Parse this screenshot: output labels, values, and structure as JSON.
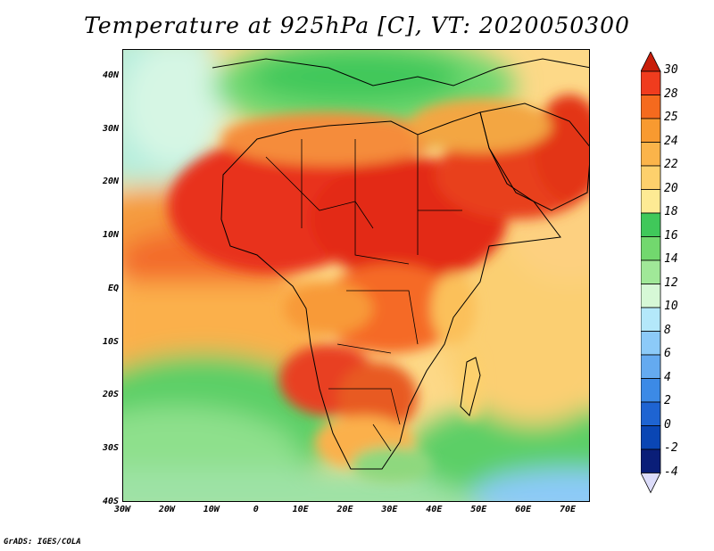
{
  "title": "Temperature at 925hPa [C], VT: 2020050300",
  "credit": "GrADS: IGES/COLA",
  "map": {
    "lon_range": [
      -30,
      75
    ],
    "lat_range": [
      -40,
      45
    ],
    "lon_ticks": [
      {
        "value": -30,
        "label": "30W"
      },
      {
        "value": -20,
        "label": "20W"
      },
      {
        "value": -10,
        "label": "10W"
      },
      {
        "value": 0,
        "label": "0"
      },
      {
        "value": 10,
        "label": "10E"
      },
      {
        "value": 20,
        "label": "20E"
      },
      {
        "value": 30,
        "label": "30E"
      },
      {
        "value": 40,
        "label": "40E"
      },
      {
        "value": 50,
        "label": "50E"
      },
      {
        "value": 60,
        "label": "60E"
      },
      {
        "value": 70,
        "label": "70E"
      }
    ],
    "lat_ticks": [
      {
        "value": 40,
        "label": "40N"
      },
      {
        "value": 30,
        "label": "30N"
      },
      {
        "value": 20,
        "label": "20N"
      },
      {
        "value": 10,
        "label": "10N"
      },
      {
        "value": 0,
        "label": "EQ"
      },
      {
        "value": -10,
        "label": "10S"
      },
      {
        "value": -20,
        "label": "20S"
      },
      {
        "value": -30,
        "label": "30S"
      },
      {
        "value": -40,
        "label": "40S"
      }
    ]
  },
  "colorbar": {
    "levels": [
      "30",
      "28",
      "25",
      "24",
      "22",
      "20",
      "18",
      "16",
      "14",
      "12",
      "10",
      "8",
      "6",
      "4",
      "2",
      "0",
      "-2",
      "-4"
    ],
    "colors": [
      "#f03c1e",
      "#f56a1e",
      "#f89a30",
      "#fbb44a",
      "#fdd06c",
      "#fdea94",
      "#40c85a",
      "#72d86e",
      "#a0e898",
      "#d6f8d6",
      "#b4e8fa",
      "#8ccaf8",
      "#64aaf0",
      "#3c8ae6",
      "#1e64d2",
      "#0a46b4",
      "#0a1e78"
    ],
    "top_color": "#c81e0a",
    "bottom_color": "#dcdcfa"
  }
}
